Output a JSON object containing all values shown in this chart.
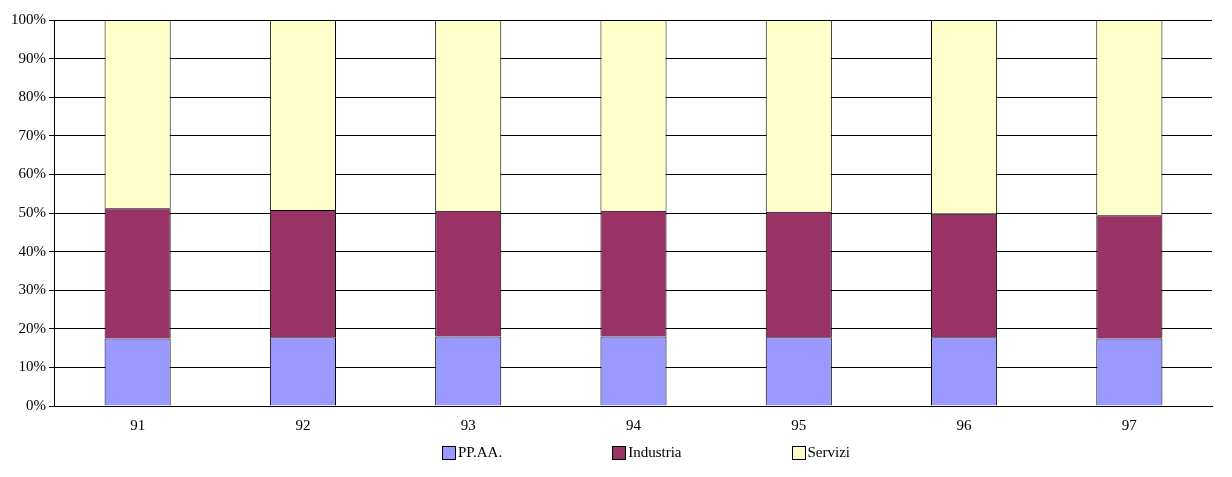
{
  "chart_data": {
    "type": "bar",
    "stacked": true,
    "categories": [
      "91",
      "92",
      "93",
      "94",
      "95",
      "96",
      "97"
    ],
    "series": [
      {
        "name": "PP.AA.",
        "color": "#9999ff",
        "values": [
          17.5,
          17.8,
          18.0,
          18.0,
          17.8,
          17.8,
          17.5
        ]
      },
      {
        "name": "Industria",
        "color": "#993366",
        "values": [
          33.7,
          33.0,
          32.6,
          32.6,
          32.5,
          32.0,
          31.9
        ]
      },
      {
        "name": "Servizi",
        "color": "#ffffcc",
        "values": [
          48.8,
          49.2,
          49.4,
          49.4,
          49.7,
          50.2,
          50.6
        ]
      }
    ],
    "ylim": [
      0,
      100
    ],
    "yticks": [
      {
        "value": 0,
        "label": "0%"
      },
      {
        "value": 10,
        "label": "10%"
      },
      {
        "value": 20,
        "label": "20%"
      },
      {
        "value": 30,
        "label": "30%"
      },
      {
        "value": 40,
        "label": "40%"
      },
      {
        "value": 50,
        "label": "50%"
      },
      {
        "value": 60,
        "label": "60%"
      },
      {
        "value": 70,
        "label": "70%"
      },
      {
        "value": 80,
        "label": "80%"
      },
      {
        "value": 90,
        "label": "90%"
      },
      {
        "value": 100,
        "label": "100%"
      }
    ],
    "grid": "y",
    "legend": "bottom"
  }
}
